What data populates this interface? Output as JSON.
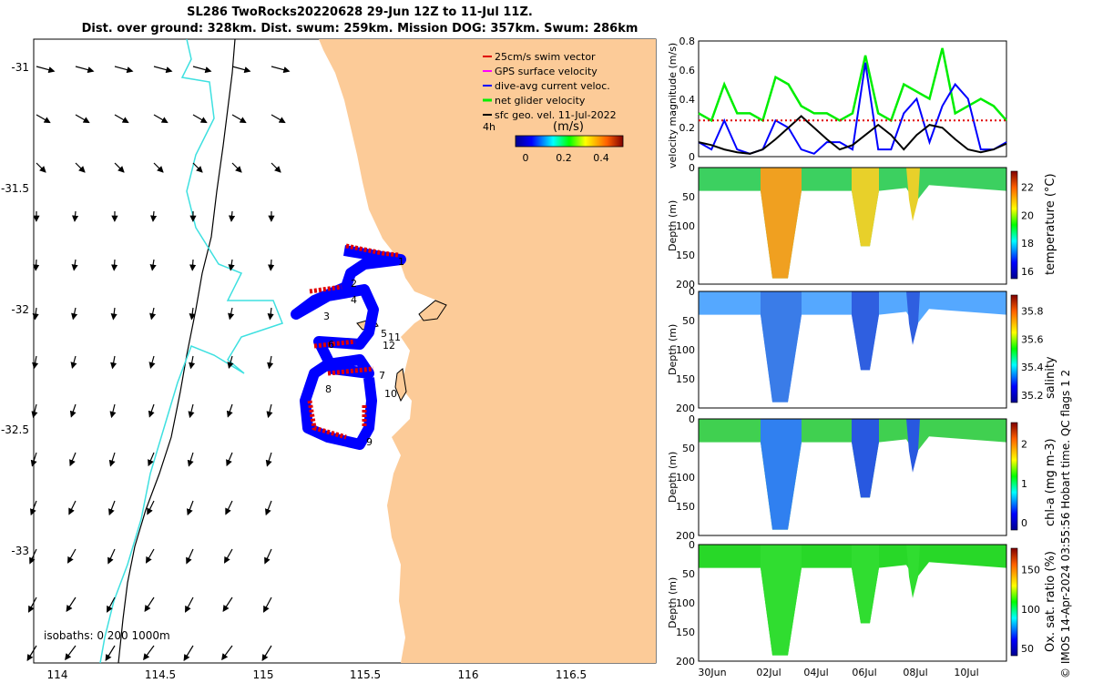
{
  "title": {
    "line1": "SL286 TwoRocks20220628 29-Jun 12Z to 11-Jul 11Z.",
    "line2": "Dist. over ground: 328km. Dist. swum: 259km. Mission DOG: 357km. Swum: 286km"
  },
  "map": {
    "legend": [
      {
        "label": "25cm/s swim vector",
        "color": "#e00000"
      },
      {
        "label": "GPS surface velocity",
        "color": "#ff00ff"
      },
      {
        "label": "dive-avg current veloc.",
        "color": "#0000ff"
      },
      {
        "label": "net glider velocity",
        "color": "#00ee00"
      },
      {
        "label": "sfc geo. vel. 11-Jul-2022",
        "color": "#000000"
      }
    ],
    "time_label": "4h",
    "colorbar": {
      "title": "(m/s)",
      "ticks": [
        "0",
        "0.2",
        "0.4"
      ]
    },
    "x_ticks": [
      "114",
      "114.5",
      "115",
      "115.5",
      "116",
      "116.5"
    ],
    "y_ticks": [
      "-31",
      "-31.5",
      "-32",
      "-32.5",
      "-33"
    ],
    "isobaths_label": "isobaths: 0   200  1000m",
    "waypoints": [
      "1",
      "2",
      "3",
      "4",
      "5",
      "6",
      "7",
      "8",
      "9",
      "10",
      "11",
      "12"
    ],
    "colors": {
      "land": "#fccb98",
      "isobath_200": "#000000",
      "isobath_1000": "#3ee0e0",
      "track": "#0000ff",
      "swim": "#e00000"
    }
  },
  "chart_data": [
    {
      "type": "line",
      "ylabel": "velocity magnitude (m/s)",
      "ylim": [
        0,
        0.8
      ],
      "y_ticks": [
        "0",
        "0.2",
        "0.4",
        "0.6",
        "0.8"
      ],
      "x": [
        0.0,
        0.5,
        1.0,
        1.5,
        2.0,
        2.5,
        3.0,
        3.5,
        4.0,
        4.5,
        5.0,
        5.5,
        6.0,
        6.5,
        7.0,
        7.5,
        8.0,
        8.5,
        9.0,
        9.5,
        10.0,
        10.5,
        11.0,
        11.5,
        12.0
      ],
      "series": [
        {
          "color": "#00ee00",
          "values": [
            0.3,
            0.25,
            0.5,
            0.3,
            0.3,
            0.25,
            0.55,
            0.5,
            0.35,
            0.3,
            0.3,
            0.25,
            0.3,
            0.7,
            0.3,
            0.25,
            0.5,
            0.45,
            0.4,
            0.75,
            0.3,
            0.35,
            0.4,
            0.35,
            0.25
          ]
        },
        {
          "color": "#0000ff",
          "values": [
            0.1,
            0.05,
            0.25,
            0.05,
            0.02,
            0.05,
            0.25,
            0.2,
            0.05,
            0.02,
            0.1,
            0.1,
            0.05,
            0.65,
            0.05,
            0.05,
            0.3,
            0.4,
            0.1,
            0.35,
            0.5,
            0.4,
            0.05,
            0.05,
            0.1
          ]
        },
        {
          "color": "#000000",
          "values": [
            0.1,
            0.08,
            0.05,
            0.03,
            0.02,
            0.05,
            0.12,
            0.2,
            0.28,
            0.2,
            0.12,
            0.05,
            0.08,
            0.15,
            0.22,
            0.15,
            0.05,
            0.15,
            0.22,
            0.2,
            0.12,
            0.05,
            0.03,
            0.05,
            0.09
          ]
        },
        {
          "color": "#e00000",
          "values": [
            0.25,
            0.25,
            0.25,
            0.25,
            0.25,
            0.25,
            0.25,
            0.25,
            0.25,
            0.25,
            0.25,
            0.25,
            0.25,
            0.25,
            0.25,
            0.25,
            0.25,
            0.25,
            0.25,
            0.25,
            0.25,
            0.25,
            0.25,
            0.25,
            0.25
          ]
        }
      ]
    },
    {
      "type": "heatmap",
      "ylabel": "Depth (m)",
      "colorbar_label": "temperature (°C)",
      "ylim": [
        0,
        200
      ],
      "colorbar_ticks": [
        "16",
        "18",
        "20",
        "22"
      ]
    },
    {
      "type": "heatmap",
      "ylabel": "Depth (m)",
      "colorbar_label": "salinity",
      "ylim": [
        0,
        200
      ],
      "colorbar_ticks": [
        "35.2",
        "35.4",
        "35.6",
        "35.8"
      ]
    },
    {
      "type": "heatmap",
      "ylabel": "Depth (m)",
      "colorbar_label": "chl-a (mg m-3)",
      "ylim": [
        0,
        200
      ],
      "colorbar_ticks": [
        "0",
        "1",
        "2"
      ]
    },
    {
      "type": "heatmap",
      "ylabel": "Depth (m)",
      "colorbar_label": "Ox. sat. ratio (%)",
      "ylim": [
        0,
        200
      ],
      "colorbar_ticks": [
        "50",
        "100",
        "150"
      ]
    }
  ],
  "depth_ticks": [
    "0",
    "50",
    "100",
    "150",
    "200"
  ],
  "time_ticks": [
    "30Jun",
    "02Jul",
    "04Jul",
    "06Jul",
    "08Jul",
    "10Jul"
  ],
  "footer": {
    "copyright": "© IMOS 14-Apr-2024 03:55:56 Hobart time. QC flags 1  2"
  }
}
